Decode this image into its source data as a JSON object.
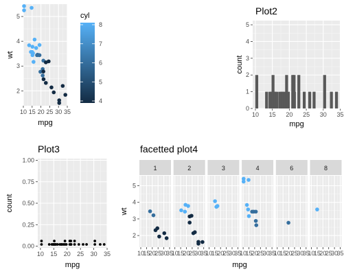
{
  "chart_data": [
    {
      "type": "scatter",
      "title": "",
      "xlabel": "mpg",
      "ylabel": "wt",
      "xlim": [
        10,
        35
      ],
      "ylim": [
        1.4,
        5.5
      ],
      "xticks": [
        10,
        15,
        20,
        25,
        30,
        35
      ],
      "xtick_labels": [
        "10",
        "15",
        "20",
        "25",
        "30",
        "35"
      ],
      "yticks": [
        2,
        3,
        4,
        5
      ],
      "ytick_labels": [
        "2",
        "3",
        "4",
        "5"
      ],
      "color_by": "cyl",
      "legend": {
        "title": "cyl",
        "position": "right",
        "range": [
          4,
          8
        ],
        "ticks": [
          4,
          5,
          6,
          7,
          8
        ],
        "tick_labels": [
          "4",
          "5",
          "6",
          "7",
          "8"
        ],
        "color_low": "#132B43",
        "color_high": "#56B1F7"
      },
      "points": [
        {
          "x": 10.4,
          "y": 5.25,
          "c": 8
        },
        {
          "x": 10.4,
          "y": 5.42,
          "c": 8
        },
        {
          "x": 14.7,
          "y": 5.35,
          "c": 8
        },
        {
          "x": 13.3,
          "y": 3.84,
          "c": 8
        },
        {
          "x": 14.3,
          "y": 3.57,
          "c": 8
        },
        {
          "x": 15.0,
          "y": 3.57,
          "c": 8
        },
        {
          "x": 15.2,
          "y": 3.78,
          "c": 8
        },
        {
          "x": 15.2,
          "y": 3.44,
          "c": 8
        },
        {
          "x": 15.5,
          "y": 3.52,
          "c": 8
        },
        {
          "x": 15.8,
          "y": 3.17,
          "c": 8
        },
        {
          "x": 16.4,
          "y": 4.07,
          "c": 8
        },
        {
          "x": 17.3,
          "y": 3.73,
          "c": 8
        },
        {
          "x": 18.7,
          "y": 3.44,
          "c": 8
        },
        {
          "x": 19.2,
          "y": 3.85,
          "c": 8
        },
        {
          "x": 17.8,
          "y": 3.44,
          "c": 6
        },
        {
          "x": 18.1,
          "y": 3.46,
          "c": 6
        },
        {
          "x": 19.2,
          "y": 3.44,
          "c": 6
        },
        {
          "x": 19.7,
          "y": 2.77,
          "c": 6
        },
        {
          "x": 21.0,
          "y": 2.62,
          "c": 6
        },
        {
          "x": 21.0,
          "y": 2.88,
          "c": 6
        },
        {
          "x": 21.4,
          "y": 3.22,
          "c": 6
        },
        {
          "x": 21.4,
          "y": 2.78,
          "c": 4
        },
        {
          "x": 21.5,
          "y": 2.47,
          "c": 4
        },
        {
          "x": 22.8,
          "y": 2.32,
          "c": 4
        },
        {
          "x": 22.8,
          "y": 3.15,
          "c": 4
        },
        {
          "x": 24.4,
          "y": 3.19,
          "c": 4
        },
        {
          "x": 26.0,
          "y": 2.14,
          "c": 4
        },
        {
          "x": 27.3,
          "y": 1.94,
          "c": 4
        },
        {
          "x": 30.4,
          "y": 1.62,
          "c": 4
        },
        {
          "x": 30.4,
          "y": 1.51,
          "c": 4
        },
        {
          "x": 32.4,
          "y": 2.2,
          "c": 4
        },
        {
          "x": 33.9,
          "y": 1.84,
          "c": 4
        }
      ]
    },
    {
      "type": "bar",
      "title": "Plot2",
      "xlabel": "mpg",
      "ylabel": "count",
      "xlim": [
        9.2,
        35.1
      ],
      "ylim": [
        0,
        5.25
      ],
      "xticks": [
        10,
        15,
        20,
        25,
        30,
        35
      ],
      "xtick_labels": [
        "10",
        "15",
        "20",
        "25",
        "30",
        "35"
      ],
      "yticks": [
        0,
        1,
        2,
        3,
        4,
        5
      ],
      "ytick_labels": [
        "0",
        "1",
        "2",
        "3",
        "4",
        "5"
      ],
      "bins": [
        {
          "x": 10.4,
          "count": 2
        },
        {
          "x": 13.3,
          "count": 1
        },
        {
          "x": 14.3,
          "count": 1
        },
        {
          "x": 14.7,
          "count": 1
        },
        {
          "x": 15.0,
          "count": 1
        },
        {
          "x": 15.2,
          "count": 2
        },
        {
          "x": 15.5,
          "count": 1
        },
        {
          "x": 15.8,
          "count": 1
        },
        {
          "x": 16.4,
          "count": 1
        },
        {
          "x": 17.3,
          "count": 1
        },
        {
          "x": 17.8,
          "count": 1
        },
        {
          "x": 18.1,
          "count": 1
        },
        {
          "x": 18.7,
          "count": 1
        },
        {
          "x": 19.2,
          "count": 2
        },
        {
          "x": 19.7,
          "count": 1
        },
        {
          "x": 21.0,
          "count": 2
        },
        {
          "x": 21.4,
          "count": 2
        },
        {
          "x": 21.5,
          "count": 1
        },
        {
          "x": 22.8,
          "count": 2
        },
        {
          "x": 24.4,
          "count": 1
        },
        {
          "x": 26.0,
          "count": 1
        },
        {
          "x": 27.3,
          "count": 1
        },
        {
          "x": 30.4,
          "count": 2
        },
        {
          "x": 32.4,
          "count": 1
        },
        {
          "x": 33.9,
          "count": 1
        }
      ],
      "bin_width": 0.86,
      "bar_color": "#595959"
    },
    {
      "type": "scatter",
      "title": "Plot3",
      "xlabel": "mpg",
      "ylabel": "count",
      "xlim": [
        9.0,
        35.0
      ],
      "ylim": [
        -0.02,
        1.02
      ],
      "xticks": [
        10,
        15,
        20,
        25,
        30,
        35
      ],
      "xtick_labels": [
        "10",
        "15",
        "20",
        "25",
        "30",
        "35"
      ],
      "yticks": [
        0,
        0.25,
        0.5,
        0.75,
        1.0
      ],
      "ytick_labels": [
        "0.00",
        "0.25",
        "0.50",
        "0.75",
        "1.00"
      ],
      "point_color": "#000000",
      "points": [
        {
          "x": 10.4,
          "y": 0.02
        },
        {
          "x": 10.4,
          "y": 0.06
        },
        {
          "x": 13.3,
          "y": 0.02
        },
        {
          "x": 14.3,
          "y": 0.02
        },
        {
          "x": 14.7,
          "y": 0.02
        },
        {
          "x": 15.0,
          "y": 0.02
        },
        {
          "x": 15.2,
          "y": 0.02
        },
        {
          "x": 15.2,
          "y": 0.06
        },
        {
          "x": 15.5,
          "y": 0.02
        },
        {
          "x": 15.8,
          "y": 0.02
        },
        {
          "x": 16.4,
          "y": 0.02
        },
        {
          "x": 17.3,
          "y": 0.02
        },
        {
          "x": 17.8,
          "y": 0.02
        },
        {
          "x": 18.1,
          "y": 0.02
        },
        {
          "x": 18.7,
          "y": 0.02
        },
        {
          "x": 19.2,
          "y": 0.02
        },
        {
          "x": 19.2,
          "y": 0.06
        },
        {
          "x": 19.7,
          "y": 0.02
        },
        {
          "x": 21.0,
          "y": 0.02
        },
        {
          "x": 21.0,
          "y": 0.06
        },
        {
          "x": 21.4,
          "y": 0.02
        },
        {
          "x": 21.4,
          "y": 0.06
        },
        {
          "x": 21.5,
          "y": 0.02
        },
        {
          "x": 22.8,
          "y": 0.02
        },
        {
          "x": 22.8,
          "y": 0.06
        },
        {
          "x": 24.4,
          "y": 0.02
        },
        {
          "x": 26.0,
          "y": 0.02
        },
        {
          "x": 27.3,
          "y": 0.02
        },
        {
          "x": 30.4,
          "y": 0.02
        },
        {
          "x": 30.4,
          "y": 0.06
        },
        {
          "x": 32.4,
          "y": 0.02
        },
        {
          "x": 33.9,
          "y": 0.02
        }
      ]
    },
    {
      "type": "scatter",
      "title": "facetted plot4",
      "xlabel": "mpg",
      "ylabel": "wt",
      "xlim": [
        10,
        35
      ],
      "ylim": [
        1.3,
        5.6
      ],
      "xticks": [
        10,
        15,
        20,
        25,
        30,
        35
      ],
      "xtick_labels": [
        "10",
        "15",
        "20",
        "25",
        "30",
        "35"
      ],
      "yticks": [
        2,
        3,
        4,
        5
      ],
      "ytick_labels": [
        "2",
        "3",
        "4",
        "5"
      ],
      "color_by": "cyl",
      "color_range": [
        4,
        8
      ],
      "color_low": "#132B43",
      "color_high": "#56B1F7",
      "facets": [
        {
          "label": "1",
          "points": [
            {
              "x": 18.1,
              "y": 3.46,
              "c": 6
            },
            {
              "x": 21.0,
              "y": 3.22,
              "c": 6
            },
            {
              "x": 22.8,
              "y": 2.32,
              "c": 4
            },
            {
              "x": 24.4,
              "y": 2.44,
              "c": 4
            },
            {
              "x": 26.0,
              "y": 1.94,
              "c": 4
            },
            {
              "x": 30.4,
              "y": 2.14,
              "c": 4
            },
            {
              "x": 32.4,
              "y": 1.84,
              "c": 4
            }
          ]
        },
        {
          "label": "2",
          "points": [
            {
              "x": 15.5,
              "y": 3.52,
              "c": 8
            },
            {
              "x": 18.7,
              "y": 3.44,
              "c": 8
            },
            {
              "x": 19.2,
              "y": 3.85,
              "c": 8
            },
            {
              "x": 21.5,
              "y": 3.78,
              "c": 8
            },
            {
              "x": 22.8,
              "y": 3.15,
              "c": 4
            },
            {
              "x": 24.4,
              "y": 3.19,
              "c": 4
            },
            {
              "x": 22.8,
              "y": 2.78,
              "c": 4
            },
            {
              "x": 26.0,
              "y": 2.14,
              "c": 4
            },
            {
              "x": 27.3,
              "y": 2.2,
              "c": 4
            },
            {
              "x": 30.4,
              "y": 1.62,
              "c": 4
            },
            {
              "x": 30.4,
              "y": 1.51,
              "c": 4
            },
            {
              "x": 33.9,
              "y": 1.61,
              "c": 4
            }
          ]
        },
        {
          "label": "3",
          "points": [
            {
              "x": 15.2,
              "y": 4.07,
              "c": 8
            },
            {
              "x": 16.4,
              "y": 3.73,
              "c": 8
            },
            {
              "x": 17.3,
              "y": 3.78,
              "c": 8
            }
          ]
        },
        {
          "label": "4",
          "points": [
            {
              "x": 10.4,
              "y": 5.25,
              "c": 8
            },
            {
              "x": 10.4,
              "y": 5.42,
              "c": 8
            },
            {
              "x": 14.7,
              "y": 5.35,
              "c": 8
            },
            {
              "x": 13.3,
              "y": 3.84,
              "c": 8
            },
            {
              "x": 14.3,
              "y": 3.57,
              "c": 8
            },
            {
              "x": 15.0,
              "y": 3.17,
              "c": 8
            },
            {
              "x": 17.8,
              "y": 3.44,
              "c": 6
            },
            {
              "x": 19.2,
              "y": 3.44,
              "c": 6
            },
            {
              "x": 21.0,
              "y": 3.44,
              "c": 6
            },
            {
              "x": 21.0,
              "y": 2.88,
              "c": 6
            },
            {
              "x": 21.4,
              "y": 2.62,
              "c": 6
            }
          ]
        },
        {
          "label": "6",
          "points": [
            {
              "x": 19.7,
              "y": 2.77,
              "c": 6
            }
          ]
        },
        {
          "label": "8",
          "points": [
            {
              "x": 15.0,
              "y": 3.57,
              "c": 8
            }
          ]
        }
      ]
    }
  ]
}
